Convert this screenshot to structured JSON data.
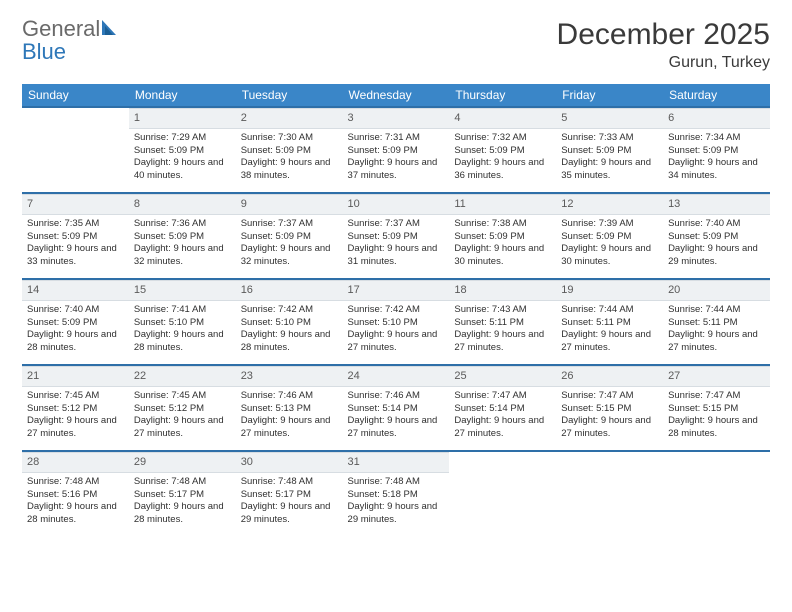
{
  "logo": {
    "word1": "General",
    "word2": "Blue"
  },
  "title": "December 2025",
  "location": "Gurun, Turkey",
  "colors": {
    "header_bg": "#3a86c8",
    "row_border": "#2e6fa8",
    "daynum_bg": "#eef1f3",
    "logo_gray": "#6a6a6a",
    "logo_blue": "#2e77b8"
  },
  "weekdays": [
    "Sunday",
    "Monday",
    "Tuesday",
    "Wednesday",
    "Thursday",
    "Friday",
    "Saturday"
  ],
  "weeks": [
    [
      null,
      {
        "n": "1",
        "sr": "7:29 AM",
        "ss": "5:09 PM",
        "dl": "9 hours and 40 minutes."
      },
      {
        "n": "2",
        "sr": "7:30 AM",
        "ss": "5:09 PM",
        "dl": "9 hours and 38 minutes."
      },
      {
        "n": "3",
        "sr": "7:31 AM",
        "ss": "5:09 PM",
        "dl": "9 hours and 37 minutes."
      },
      {
        "n": "4",
        "sr": "7:32 AM",
        "ss": "5:09 PM",
        "dl": "9 hours and 36 minutes."
      },
      {
        "n": "5",
        "sr": "7:33 AM",
        "ss": "5:09 PM",
        "dl": "9 hours and 35 minutes."
      },
      {
        "n": "6",
        "sr": "7:34 AM",
        "ss": "5:09 PM",
        "dl": "9 hours and 34 minutes."
      }
    ],
    [
      {
        "n": "7",
        "sr": "7:35 AM",
        "ss": "5:09 PM",
        "dl": "9 hours and 33 minutes."
      },
      {
        "n": "8",
        "sr": "7:36 AM",
        "ss": "5:09 PM",
        "dl": "9 hours and 32 minutes."
      },
      {
        "n": "9",
        "sr": "7:37 AM",
        "ss": "5:09 PM",
        "dl": "9 hours and 32 minutes."
      },
      {
        "n": "10",
        "sr": "7:37 AM",
        "ss": "5:09 PM",
        "dl": "9 hours and 31 minutes."
      },
      {
        "n": "11",
        "sr": "7:38 AM",
        "ss": "5:09 PM",
        "dl": "9 hours and 30 minutes."
      },
      {
        "n": "12",
        "sr": "7:39 AM",
        "ss": "5:09 PM",
        "dl": "9 hours and 30 minutes."
      },
      {
        "n": "13",
        "sr": "7:40 AM",
        "ss": "5:09 PM",
        "dl": "9 hours and 29 minutes."
      }
    ],
    [
      {
        "n": "14",
        "sr": "7:40 AM",
        "ss": "5:09 PM",
        "dl": "9 hours and 28 minutes."
      },
      {
        "n": "15",
        "sr": "7:41 AM",
        "ss": "5:10 PM",
        "dl": "9 hours and 28 minutes."
      },
      {
        "n": "16",
        "sr": "7:42 AM",
        "ss": "5:10 PM",
        "dl": "9 hours and 28 minutes."
      },
      {
        "n": "17",
        "sr": "7:42 AM",
        "ss": "5:10 PM",
        "dl": "9 hours and 27 minutes."
      },
      {
        "n": "18",
        "sr": "7:43 AM",
        "ss": "5:11 PM",
        "dl": "9 hours and 27 minutes."
      },
      {
        "n": "19",
        "sr": "7:44 AM",
        "ss": "5:11 PM",
        "dl": "9 hours and 27 minutes."
      },
      {
        "n": "20",
        "sr": "7:44 AM",
        "ss": "5:11 PM",
        "dl": "9 hours and 27 minutes."
      }
    ],
    [
      {
        "n": "21",
        "sr": "7:45 AM",
        "ss": "5:12 PM",
        "dl": "9 hours and 27 minutes."
      },
      {
        "n": "22",
        "sr": "7:45 AM",
        "ss": "5:12 PM",
        "dl": "9 hours and 27 minutes."
      },
      {
        "n": "23",
        "sr": "7:46 AM",
        "ss": "5:13 PM",
        "dl": "9 hours and 27 minutes."
      },
      {
        "n": "24",
        "sr": "7:46 AM",
        "ss": "5:14 PM",
        "dl": "9 hours and 27 minutes."
      },
      {
        "n": "25",
        "sr": "7:47 AM",
        "ss": "5:14 PM",
        "dl": "9 hours and 27 minutes."
      },
      {
        "n": "26",
        "sr": "7:47 AM",
        "ss": "5:15 PM",
        "dl": "9 hours and 27 minutes."
      },
      {
        "n": "27",
        "sr": "7:47 AM",
        "ss": "5:15 PM",
        "dl": "9 hours and 28 minutes."
      }
    ],
    [
      {
        "n": "28",
        "sr": "7:48 AM",
        "ss": "5:16 PM",
        "dl": "9 hours and 28 minutes."
      },
      {
        "n": "29",
        "sr": "7:48 AM",
        "ss": "5:17 PM",
        "dl": "9 hours and 28 minutes."
      },
      {
        "n": "30",
        "sr": "7:48 AM",
        "ss": "5:17 PM",
        "dl": "9 hours and 29 minutes."
      },
      {
        "n": "31",
        "sr": "7:48 AM",
        "ss": "5:18 PM",
        "dl": "9 hours and 29 minutes."
      },
      null,
      null,
      null
    ]
  ],
  "labels": {
    "sunrise": "Sunrise:",
    "sunset": "Sunset:",
    "daylight": "Daylight:"
  }
}
